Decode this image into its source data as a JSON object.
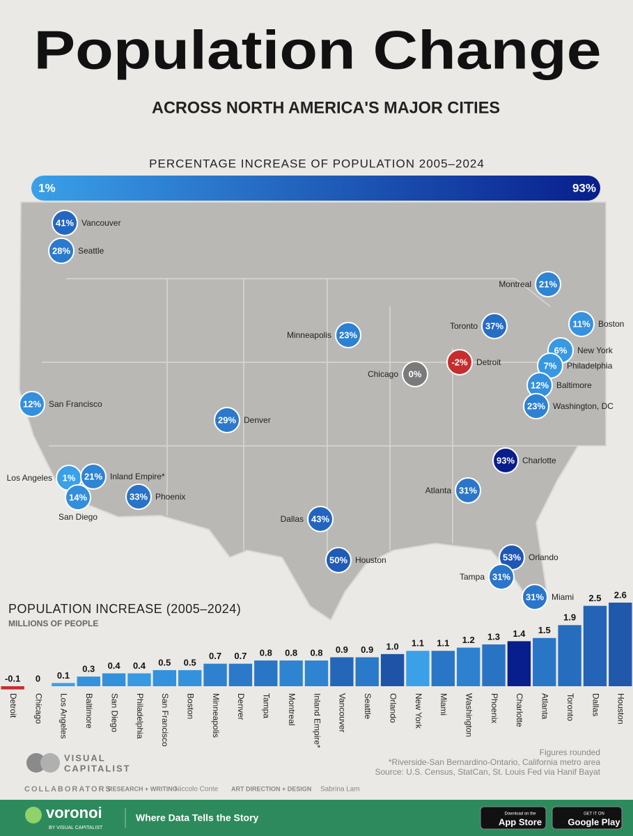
{
  "header": {
    "title": "Population Change",
    "subtitle": "ACROSS NORTH AMERICA'S MAJOR CITIES"
  },
  "chart_data": [
    {
      "type": "bubble-map",
      "title": "PERCENTAGE INCREASE OF POPULATION 2005–2024",
      "scale_ticks": [
        {
          "value": 1,
          "label": "1%"
        },
        {
          "value": 93,
          "label": "93%"
        }
      ],
      "scale_colors": [
        "#3aa0e8",
        "#081e8c"
      ],
      "negative_color": "#c62e2e",
      "zero_color": "#7a7a7a",
      "categories": [
        "Vancouver",
        "Seattle",
        "Montreal",
        "Boston",
        "Toronto",
        "Minneapolis",
        "New York",
        "Detroit",
        "Philadelphia",
        "Chicago",
        "Baltimore",
        "San Francisco",
        "Washington, DC",
        "Denver",
        "Charlotte",
        "Los Angeles",
        "Inland Empire*",
        "Phoenix",
        "San Diego",
        "Atlanta",
        "Dallas",
        "Houston",
        "Orlando",
        "Tampa",
        "Miami"
      ],
      "values": [
        41,
        28,
        21,
        11,
        37,
        23,
        6,
        -2,
        7,
        0,
        12,
        12,
        23,
        29,
        93,
        1,
        21,
        33,
        14,
        31,
        43,
        50,
        53,
        31,
        31
      ],
      "value_labels": [
        "41%",
        "28%",
        "21%",
        "11%",
        "37%",
        "23%",
        "6%",
        "-2%",
        "7%",
        "0%",
        "12%",
        "12%",
        "23%",
        "29%",
        "93%",
        "1%",
        "21%",
        "33%",
        "14%",
        "31%",
        "43%",
        "50%",
        "53%",
        "31%",
        "31%"
      ]
    },
    {
      "type": "bar",
      "title": "POPULATION INCREASE (2005–2024)",
      "subtitle": "MILLIONS OF PEOPLE",
      "categories": [
        "Detroit",
        "Chicago",
        "Los Angeles",
        "Baltimore",
        "San Diego",
        "Philadelphia",
        "San Francisco",
        "Boston",
        "Minneapolis",
        "Denver",
        "Tampa",
        "Montreal",
        "Inland Empire*",
        "Vancouver",
        "Seattle",
        "Orlando",
        "New York",
        "Miami",
        "Washington",
        "Phoenix",
        "Charlotte",
        "Atlanta",
        "Toronto",
        "Dallas",
        "Houston"
      ],
      "values": [
        -0.1,
        0,
        0.1,
        0.3,
        0.4,
        0.4,
        0.5,
        0.5,
        0.7,
        0.7,
        0.8,
        0.8,
        0.8,
        0.9,
        0.9,
        1.0,
        1.1,
        1.1,
        1.2,
        1.3,
        1.4,
        1.5,
        1.9,
        2.5,
        2.6
      ],
      "value_labels": [
        "-0.1",
        "0",
        "0.1",
        "0.3",
        "0.4",
        "0.4",
        "0.5",
        "0.5",
        "0.7",
        "0.7",
        "0.8",
        "0.8",
        "0.8",
        "0.9",
        "0.9",
        "1.0",
        "1.1",
        "1.1",
        "1.2",
        "1.3",
        "1.4",
        "1.5",
        "1.9",
        "2.5",
        "2.6"
      ],
      "colors": [
        "#c62e2e",
        "#7a7a7a",
        "#3aa0e8",
        "#3491db",
        "#3390da",
        "#3799e2",
        "#3491db",
        "#3492dc",
        "#2e81cf",
        "#2b79c8",
        "#2a76c6",
        "#2f84d1",
        "#2f84d1",
        "#2467b9",
        "#2b7ac9",
        "#1e53a7",
        "#3aa0e8",
        "#2a76c6",
        "#2e81cf",
        "#2973c4",
        "#081e8c",
        "#2a76c6",
        "#266dbe",
        "#2364b6",
        "#2058ab"
      ]
    }
  ],
  "notes": [
    "Figures rounded",
    "*Riverside-San Bernardino-Ontario, California metro area",
    "Source: U.S. Census, StatCan, St. Louis Fed via Hanif Bayat"
  ],
  "credits": {
    "brand": [
      "VISUAL",
      "CAPITALIST"
    ],
    "heading": "COLLABORATORS",
    "role1": "RESEARCH + WRITING",
    "name1": "Niccolo Conte",
    "role2": "ART DIRECTION + DESIGN",
    "name2": "Sabrina Lam"
  },
  "footer": {
    "logo": "voronoi",
    "logo_sub": "BY VISUAL CAPITALIST",
    "tagline": "Where Data Tells the Story",
    "apple_small": "Download on the",
    "apple": "App Store",
    "google_small": "GET IT ON",
    "google": "Google Play"
  }
}
